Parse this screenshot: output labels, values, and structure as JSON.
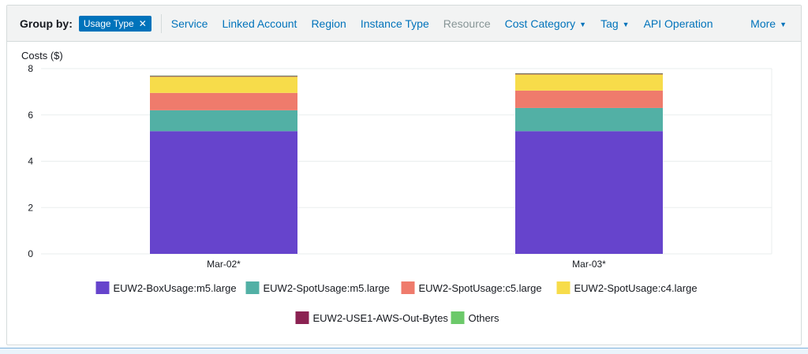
{
  "toolbar": {
    "group_by_label": "Group by:",
    "active_chip": "Usage Type",
    "options": [
      {
        "label": "Service",
        "disabled": false,
        "dropdown": false
      },
      {
        "label": "Linked Account",
        "disabled": false,
        "dropdown": false
      },
      {
        "label": "Region",
        "disabled": false,
        "dropdown": false
      },
      {
        "label": "Instance Type",
        "disabled": false,
        "dropdown": false
      },
      {
        "label": "Resource",
        "disabled": true,
        "dropdown": false
      },
      {
        "label": "Cost Category",
        "disabled": false,
        "dropdown": true
      },
      {
        "label": "Tag",
        "disabled": false,
        "dropdown": true
      },
      {
        "label": "API Operation",
        "disabled": false,
        "dropdown": false
      }
    ],
    "more_label": "More"
  },
  "chart_data": {
    "type": "bar",
    "stacked": true,
    "ylabel": "Costs ($)",
    "ylim": [
      0,
      8
    ],
    "yticks": [
      0,
      2,
      4,
      6,
      8
    ],
    "grid": true,
    "legend_position": "bottom",
    "categories": [
      "Mar-02*",
      "Mar-03*"
    ],
    "series": [
      {
        "name": "EUW2-BoxUsage:m5.large",
        "color": "#6644cc",
        "values": [
          5.3,
          5.3
        ]
      },
      {
        "name": "EUW2-SpotUsage:m5.large",
        "color": "#52b0a5",
        "values": [
          0.9,
          1.0
        ]
      },
      {
        "name": "EUW2-SpotUsage:c5.large",
        "color": "#ef7b6c",
        "values": [
          0.75,
          0.75
        ]
      },
      {
        "name": "EUW2-SpotUsage:c4.large",
        "color": "#f7dc4a",
        "values": [
          0.7,
          0.7
        ]
      },
      {
        "name": "EUW2-USE1-AWS-Out-Bytes",
        "color": "#8b2252",
        "values": [
          0.03,
          0.03
        ]
      },
      {
        "name": "Others",
        "color": "#6cc96a",
        "values": [
          0.02,
          0.02
        ]
      }
    ]
  }
}
